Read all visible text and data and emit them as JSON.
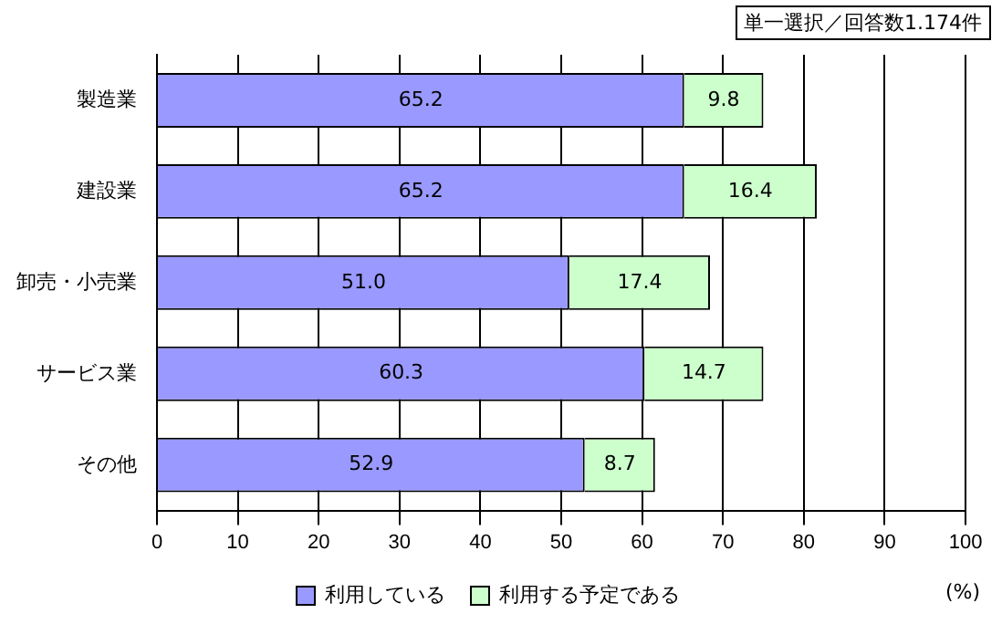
{
  "chart_data": {
    "type": "bar",
    "orientation": "horizontal",
    "stacked": true,
    "categories": [
      "製造業",
      "建設業",
      "卸売・小売業",
      "サービス業",
      "その他"
    ],
    "series": [
      {
        "name": "利用している",
        "color": "#9999ff",
        "values": [
          65.2,
          65.2,
          51.0,
          60.3,
          52.9
        ],
        "value_labels": [
          "65.2",
          "65.2",
          "51.0",
          "60.3",
          "52.9"
        ]
      },
      {
        "name": "利用する予定である",
        "color": "#ccffcc",
        "values": [
          9.8,
          16.4,
          17.4,
          14.7,
          8.7
        ],
        "value_labels": [
          "9.8",
          "16.4",
          "17.4",
          "14.7",
          "8.7"
        ]
      }
    ],
    "xlim": [
      0,
      100
    ],
    "xticks": [
      0,
      10,
      20,
      30,
      40,
      50,
      60,
      70,
      80,
      90,
      100
    ],
    "xlabel": "(%)",
    "annotations": [
      "単一選択／回答数1.174件"
    ],
    "grid": "x",
    "legend": "bottom"
  }
}
